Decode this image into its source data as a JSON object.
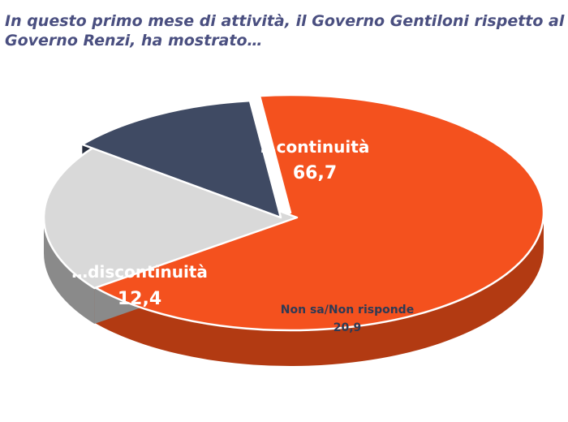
{
  "title": {
    "line1": "In questo primo mese di attività, il Governo Gentiloni rispetto al",
    "line2": "Governo Renzi, ha mostrato…"
  },
  "chart_data": {
    "type": "pie",
    "title": "In questo primo mese di attività, il Governo Gentiloni rispetto al Governo Renzi, ha mostrato…",
    "unit": "%",
    "slices": [
      {
        "label": "…continuità",
        "value": 66.7,
        "value_text": "66,7",
        "color": "#f4511e",
        "side_color": "#b23a12",
        "label_color": "#ffffff"
      },
      {
        "label": "Non sa/Non risponde",
        "value": 20.9,
        "value_text": "20,9",
        "color": "#d9d9d9",
        "side_color": "#8a8a8a",
        "label_color": "#2d3a55"
      },
      {
        "label": "…discontinuità",
        "value": 12.4,
        "value_text": "12,4",
        "color": "#3f4a63",
        "side_color": "#262d3d",
        "label_color": "#ffffff"
      }
    ],
    "start_angle_deg": -97,
    "legend": "none",
    "style": "3d-tilted"
  }
}
